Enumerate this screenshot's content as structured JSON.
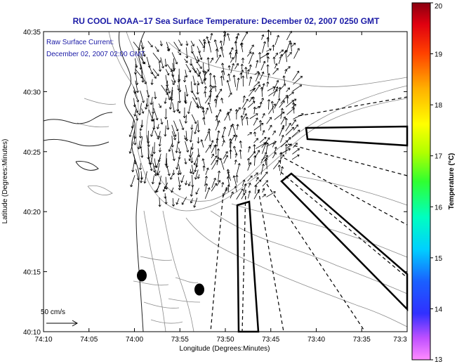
{
  "figure": {
    "title": "RU COOL  NOAA−17  Sea Surface Temperature:  December 02, 2007 0250 GMT",
    "current_label_line1": "Raw Surface Current:",
    "current_label_line2": "December 02, 2007 02:00 GMT",
    "scale_label": "50 cm/s",
    "xlabel": "Longitude (Degrees:Minutes)",
    "ylabel": "Latitude (Degrees:Minutes)",
    "colorbar_label": "Temperature (°C)",
    "colors": {
      "title": "#1a1aa6",
      "contour": "#8c8c8c",
      "frame": "#000000"
    }
  },
  "chart_data": {
    "type": "map",
    "x_ticks": [
      "74:10",
      "74:05",
      "74:00",
      "73:55",
      "73:50",
      "73:45",
      "73:40",
      "73:35",
      "73:3"
    ],
    "y_ticks": [
      "40:35",
      "40:30",
      "40:25",
      "40:20",
      "40:15",
      "40:10"
    ],
    "colorbar_ticks": [
      "20",
      "19",
      "18",
      "17",
      "16",
      "15",
      "14",
      "13"
    ],
    "colorbar_range": [
      13,
      20
    ]
  }
}
